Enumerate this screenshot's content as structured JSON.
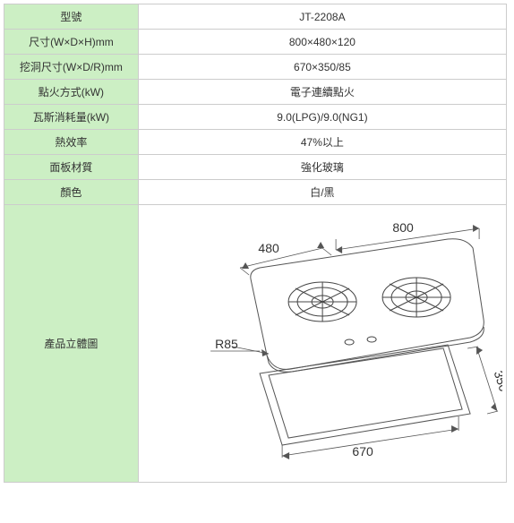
{
  "rows": [
    {
      "label": "型號",
      "value": "JT-2208A"
    },
    {
      "label": "尺寸(W×D×H)mm",
      "value": "800×480×120"
    },
    {
      "label": "挖洞尺寸(W×D/R)mm",
      "value": "670×350/85"
    },
    {
      "label": "點火方式(kW)",
      "value": "電子連續點火"
    },
    {
      "label": "瓦斯消耗量(kW)",
      "value": "9.0(LPG)/9.0(NG1)"
    },
    {
      "label": "熱效率",
      "value": "47%以上"
    },
    {
      "label": "面板材質",
      "value": "強化玻璃"
    },
    {
      "label": "顏色",
      "value": "白/黑"
    }
  ],
  "diagram": {
    "label": "產品立體圖",
    "dim_800": "800",
    "dim_480": "480",
    "dim_670": "670",
    "dim_350": "350",
    "r85": "R85",
    "colors": {
      "line": "#555555",
      "burner": "#444444",
      "text": "#333333"
    }
  }
}
